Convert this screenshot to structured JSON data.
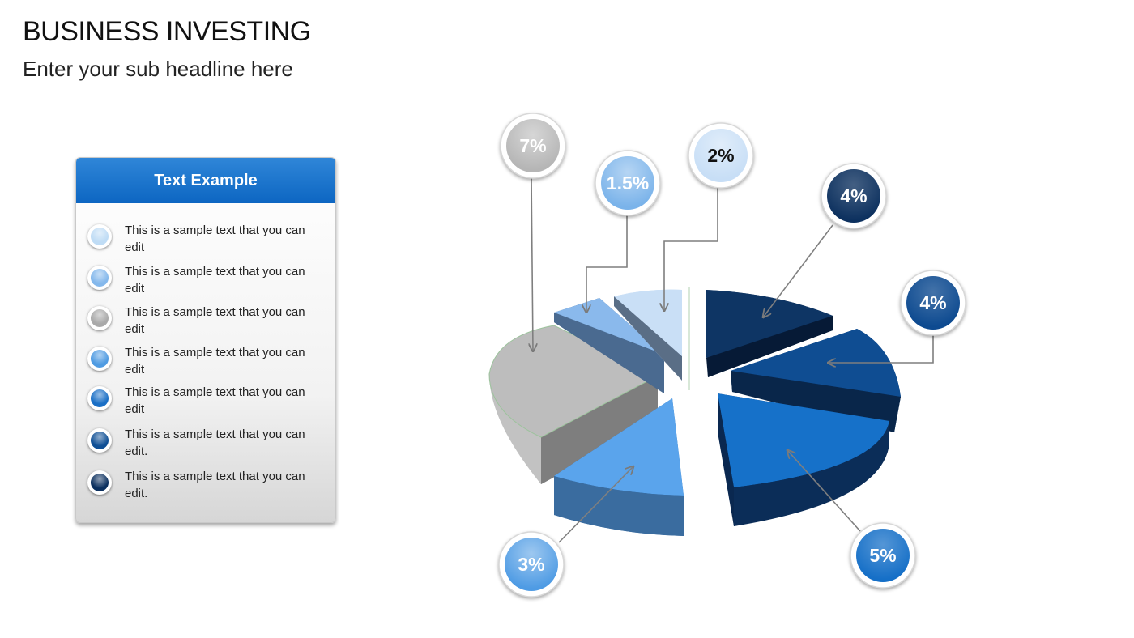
{
  "header": {
    "title": "BUSINESS INVESTING",
    "subtitle": "Enter your sub headline here"
  },
  "legend": {
    "heading": "Text Example",
    "items": [
      {
        "text": "This is a sample text that you can edit",
        "color": "#bfdcf5"
      },
      {
        "text": "This is a sample text that you can edit",
        "color": "#84b8ec"
      },
      {
        "text": "This is a sample text that you can edit",
        "color": "#a9a9a9"
      },
      {
        "text": "This is a sample text that you can edit",
        "color": "#4f9be2"
      },
      {
        "text": "This is a sample text that you can edit",
        "color": "#1a6fc6"
      },
      {
        "text": "This is a sample text that you can edit.",
        "color": "#0f4f95"
      },
      {
        "text": "This is a sample text that you can edit.",
        "color": "#0b2f5e"
      }
    ]
  },
  "segments": [
    {
      "label": "7%",
      "color": "#b5b5b5",
      "text_color": "#ffffff"
    },
    {
      "label": "1.5%",
      "color": "#7ab3ea",
      "text_color": "#ffffff"
    },
    {
      "label": "2%",
      "color": "#c7def6",
      "text_color": "#111111"
    },
    {
      "label": "4%",
      "color": "#0d315f",
      "text_color": "#ffffff"
    },
    {
      "label": "4%",
      "color": "#0d4a90",
      "text_color": "#ffffff"
    },
    {
      "label": "5%",
      "color": "#156fc7",
      "text_color": "#ffffff"
    },
    {
      "label": "3%",
      "color": "#4e9be4",
      "text_color": "#ffffff"
    }
  ]
}
